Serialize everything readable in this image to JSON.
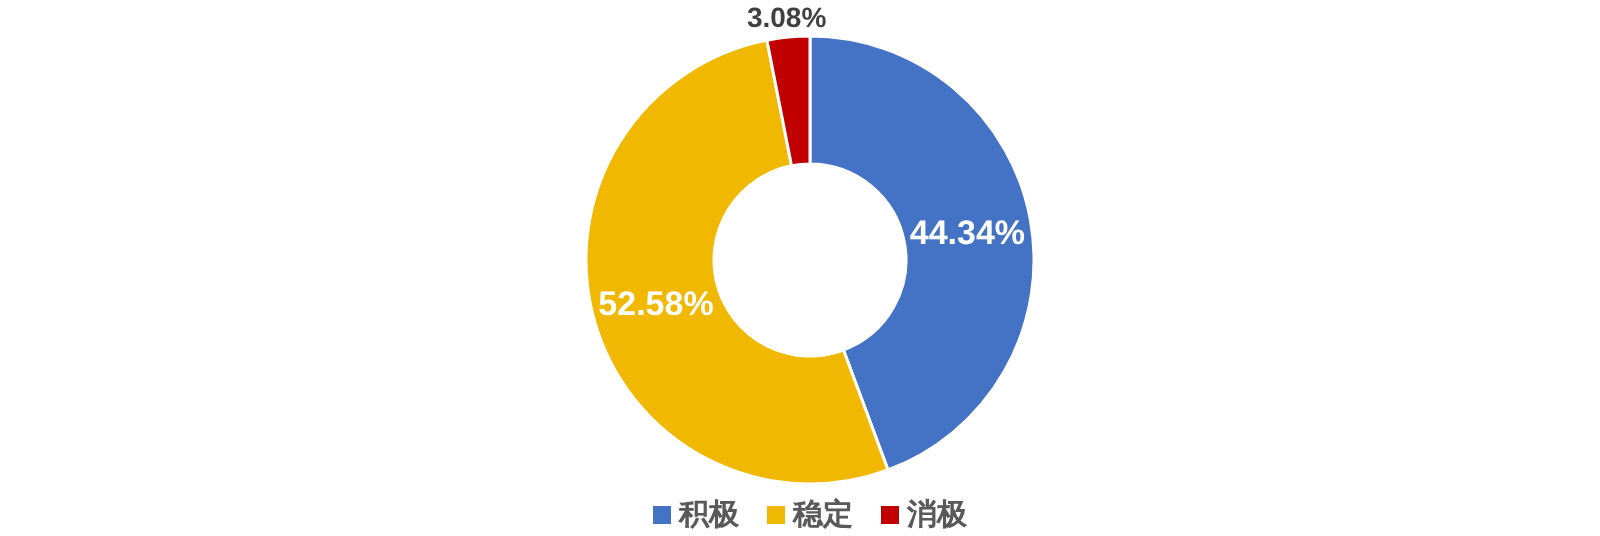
{
  "chart_data": {
    "type": "donut",
    "categories": [
      "积极",
      "稳定",
      "消极"
    ],
    "values": [
      44.34,
      52.58,
      3.08
    ],
    "colors": [
      "#4472c4",
      "#f0b800",
      "#c00000"
    ],
    "value_labels": [
      "44.34%",
      "52.58%",
      "3.08%"
    ],
    "legend": "bottom"
  }
}
